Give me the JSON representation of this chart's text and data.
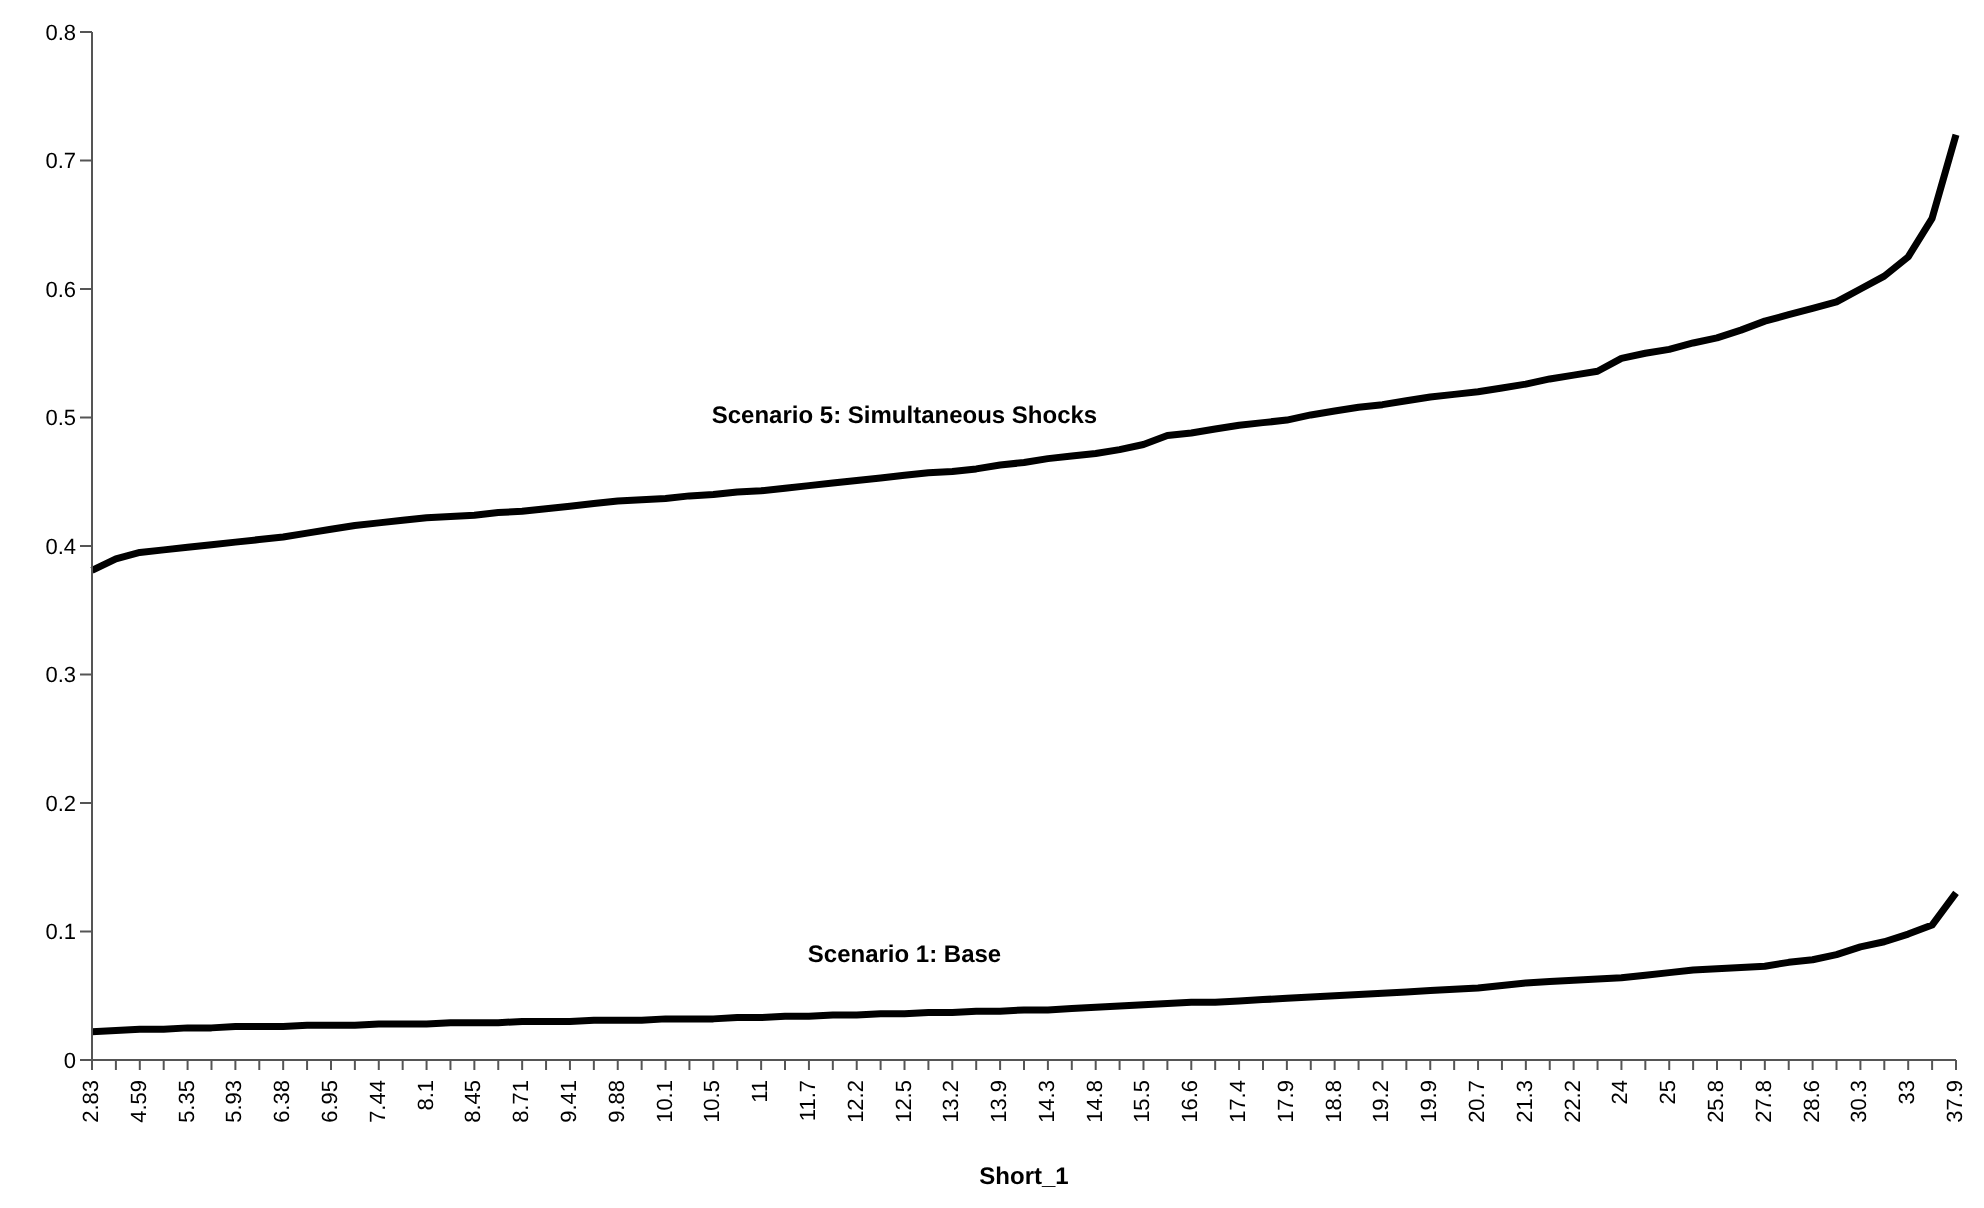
{
  "chart_data": {
    "type": "line",
    "xlabel": "Short_1",
    "categories": [
      "2.83",
      null,
      "4.59",
      null,
      "5.35",
      null,
      "5.93",
      null,
      "6.38",
      null,
      "6.95",
      null,
      "7.44",
      null,
      "8.1",
      null,
      "8.45",
      null,
      "8.71",
      null,
      "9.41",
      null,
      "9.88",
      null,
      "10.1",
      null,
      "10.5",
      null,
      "11",
      null,
      "11.7",
      null,
      "12.2",
      null,
      "12.5",
      null,
      "13.2",
      null,
      "13.9",
      null,
      "14.3",
      null,
      "14.8",
      null,
      "15.5",
      null,
      "16.6",
      null,
      "17.4",
      null,
      "17.9",
      null,
      "18.8",
      null,
      "19.2",
      null,
      "19.9",
      null,
      "20.7",
      null,
      "21.3",
      null,
      "22.2",
      null,
      "24",
      null,
      "25",
      null,
      "25.8",
      null,
      "27.8",
      null,
      "28.6",
      null,
      "30.3",
      null,
      "33",
      null,
      "37.9"
    ],
    "series": [
      {
        "name": "Scenario 5: Simultaneous Shocks",
        "color": "#000000",
        "values": [
          0.381,
          0.39,
          0.395,
          0.397,
          0.399,
          0.401,
          0.403,
          0.405,
          0.407,
          0.41,
          0.413,
          0.416,
          0.418,
          0.42,
          0.422,
          0.423,
          0.424,
          0.426,
          0.427,
          0.429,
          0.431,
          0.433,
          0.435,
          0.436,
          0.437,
          0.439,
          0.44,
          0.442,
          0.443,
          0.445,
          0.447,
          0.449,
          0.451,
          0.453,
          0.455,
          0.457,
          0.458,
          0.46,
          0.463,
          0.465,
          0.468,
          0.47,
          0.472,
          0.475,
          0.479,
          0.486,
          0.488,
          0.491,
          0.494,
          0.496,
          0.498,
          0.502,
          0.505,
          0.508,
          0.51,
          0.513,
          0.516,
          0.518,
          0.52,
          0.523,
          0.526,
          0.53,
          0.533,
          0.536,
          0.546,
          0.55,
          0.553,
          0.558,
          0.562,
          0.568,
          0.575,
          0.58,
          0.585,
          0.59,
          0.6,
          0.61,
          0.625,
          0.655,
          0.72
        ]
      },
      {
        "name": "Scenario 1: Base",
        "color": "#000000",
        "values": [
          0.022,
          0.023,
          0.024,
          0.024,
          0.025,
          0.025,
          0.026,
          0.026,
          0.026,
          0.027,
          0.027,
          0.027,
          0.028,
          0.028,
          0.028,
          0.029,
          0.029,
          0.029,
          0.03,
          0.03,
          0.03,
          0.031,
          0.031,
          0.031,
          0.032,
          0.032,
          0.032,
          0.033,
          0.033,
          0.034,
          0.034,
          0.035,
          0.035,
          0.036,
          0.036,
          0.037,
          0.037,
          0.038,
          0.038,
          0.039,
          0.039,
          0.04,
          0.041,
          0.042,
          0.043,
          0.044,
          0.045,
          0.045,
          0.046,
          0.047,
          0.048,
          0.049,
          0.05,
          0.051,
          0.052,
          0.053,
          0.054,
          0.055,
          0.056,
          0.058,
          0.06,
          0.061,
          0.062,
          0.063,
          0.064,
          0.066,
          0.068,
          0.07,
          0.071,
          0.072,
          0.073,
          0.076,
          0.078,
          0.082,
          0.088,
          0.092,
          0.098,
          0.105,
          0.13
        ]
      }
    ],
    "ylim": [
      0,
      0.8
    ],
    "yticks": [
      0,
      0.1,
      0.2,
      0.3,
      0.4,
      0.5,
      0.6,
      0.7,
      0.8
    ],
    "grid": false,
    "legend": false,
    "marker": "none",
    "line_style": "solid"
  }
}
